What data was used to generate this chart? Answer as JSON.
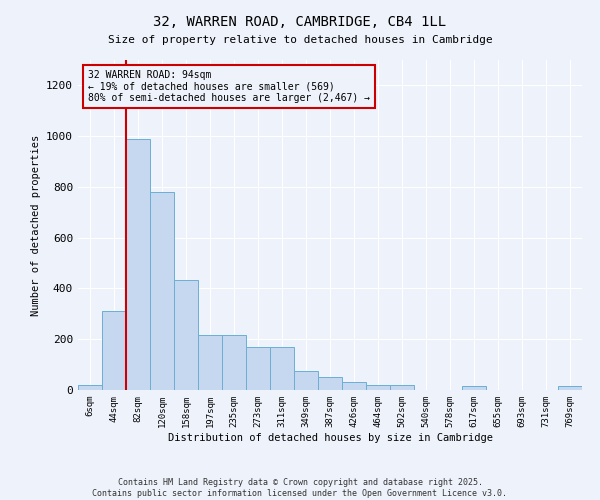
{
  "title": "32, WARREN ROAD, CAMBRIDGE, CB4 1LL",
  "subtitle": "Size of property relative to detached houses in Cambridge",
  "xlabel": "Distribution of detached houses by size in Cambridge",
  "ylabel": "Number of detached properties",
  "categories": [
    "6sqm",
    "44sqm",
    "82sqm",
    "120sqm",
    "158sqm",
    "197sqm",
    "235sqm",
    "273sqm",
    "311sqm",
    "349sqm",
    "387sqm",
    "426sqm",
    "464sqm",
    "502sqm",
    "540sqm",
    "578sqm",
    "617sqm",
    "655sqm",
    "693sqm",
    "731sqm",
    "769sqm"
  ],
  "values": [
    20,
    310,
    990,
    780,
    435,
    218,
    218,
    170,
    170,
    75,
    50,
    30,
    20,
    20,
    0,
    0,
    15,
    0,
    0,
    0,
    15
  ],
  "bar_color": "#c5d8f0",
  "bar_edge_color": "#6baed6",
  "background_color": "#eef2fb",
  "grid_color": "#ffffff",
  "vline_color": "#cc0000",
  "vline_x_index": 2,
  "annotation_text": "32 WARREN ROAD: 94sqm\n← 19% of detached houses are smaller (569)\n80% of semi-detached houses are larger (2,467) →",
  "annotation_box_edgecolor": "#cc0000",
  "ylim": [
    0,
    1300
  ],
  "yticks": [
    0,
    200,
    400,
    600,
    800,
    1000,
    1200
  ],
  "footer_line1": "Contains HM Land Registry data © Crown copyright and database right 2025.",
  "footer_line2": "Contains public sector information licensed under the Open Government Licence v3.0."
}
